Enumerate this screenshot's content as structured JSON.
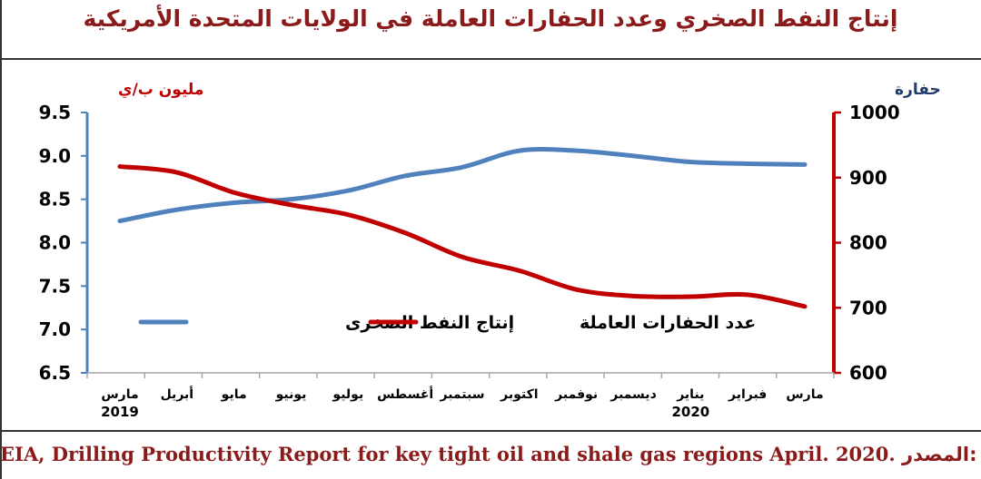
{
  "header": {
    "title": "إنتاج النفط الصخري وعدد الحفارات العاملة في الولايات المتحدة الأمريكية"
  },
  "footer": {
    "source_label": "المصدر:",
    "source_text": "EIA, Drilling Productivity Report for key tight oil and shale gas regions April. 2020."
  },
  "colors": {
    "production": "#4f81bd",
    "rigs": "#c00000",
    "axis_left": "#4f81bd",
    "axis_right": "#c00000"
  },
  "chart_data": {
    "type": "line",
    "categories": [
      "مارس",
      "أبريل",
      "مايو",
      "يونيو",
      "يوليو",
      "أغسطس",
      "سبتمبر",
      "اكتوبر",
      "نوفمبر",
      "ديسمبر",
      "يناير",
      "فبراير",
      "مارس"
    ],
    "year_labels": [
      {
        "index": 0,
        "text": "2019"
      },
      {
        "index": 10,
        "text": "2020"
      }
    ],
    "left_axis": {
      "label": "مليون ب/ي",
      "min": 6.5,
      "max": 9.5,
      "ticks": [
        "6.5",
        "7.0",
        "7.5",
        "8.0",
        "8.5",
        "9.0",
        "9.5"
      ]
    },
    "right_axis": {
      "label": "حفارة",
      "min": 600,
      "max": 1000,
      "ticks": [
        "600",
        "700",
        "800",
        "900",
        "1000"
      ]
    },
    "legend_placement": "center",
    "grid": false,
    "series": [
      {
        "name": "إنتاج النفط الصخرى",
        "axis": "left",
        "values": [
          8.25,
          8.38,
          8.46,
          8.5,
          8.6,
          8.77,
          8.87,
          9.06,
          9.06,
          9.0,
          8.93,
          8.91,
          8.9
        ]
      },
      {
        "name": "عدد الحفارات العاملة",
        "axis": "right",
        "values": [
          917,
          908,
          877,
          858,
          843,
          815,
          778,
          757,
          728,
          718,
          717,
          720,
          702
        ]
      }
    ]
  }
}
